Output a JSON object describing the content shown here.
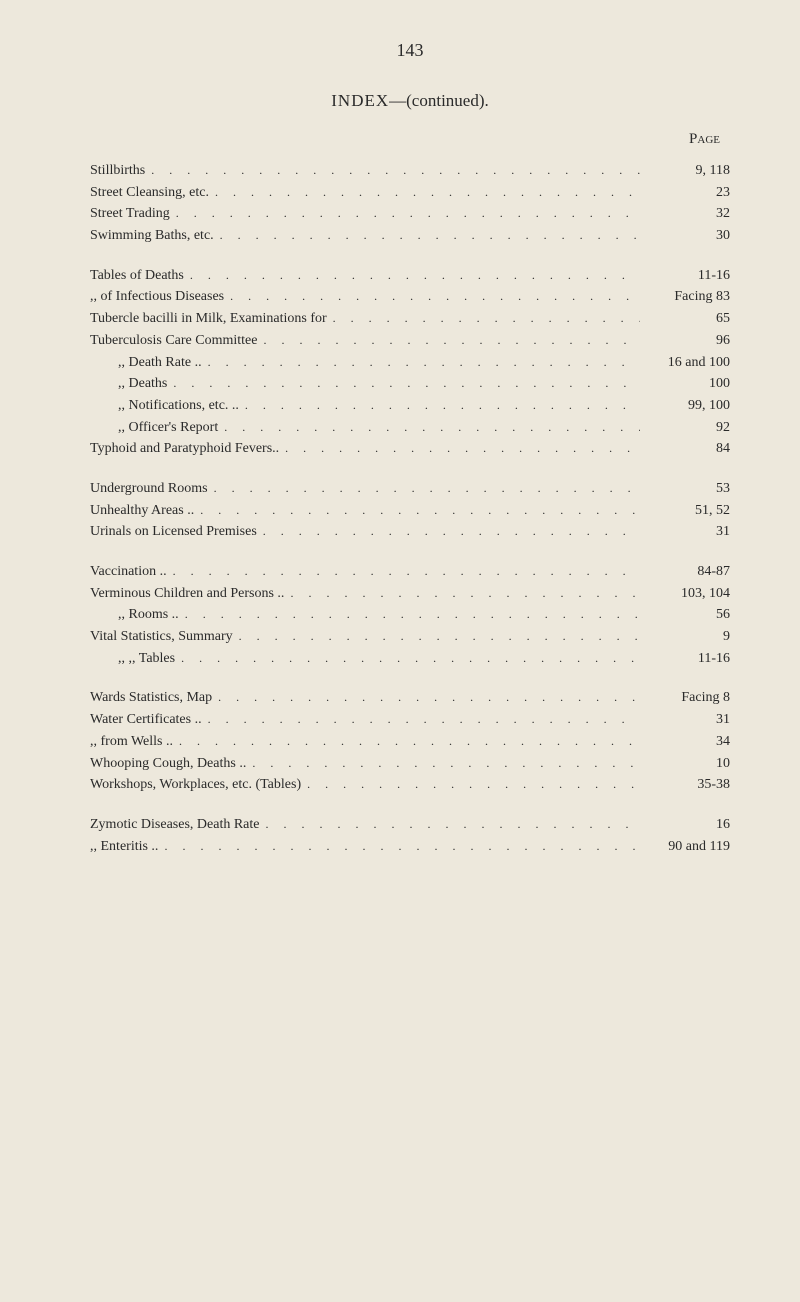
{
  "pageNumber": "143",
  "title": {
    "caps": "INDEX",
    "rest": "—(continued)."
  },
  "pageLabel": "Page",
  "dotsFill": ". . . . . . . . . . . . . . . . . . . . . . . . . . . . . .",
  "sections": [
    {
      "rows": [
        {
          "text": "Stillbirths",
          "page": "9, 118",
          "indent": 0
        },
        {
          "text": "Street Cleansing, etc.",
          "page": "23",
          "indent": 0
        },
        {
          "text": "Street Trading",
          "page": "32",
          "indent": 0
        },
        {
          "text": "Swimming Baths, etc.",
          "page": "30",
          "indent": 0
        }
      ]
    },
    {
      "rows": [
        {
          "text": "Tables of Deaths",
          "page": "11-16",
          "indent": 0
        },
        {
          "text": ",,      of Infectious Diseases",
          "page": "Facing 83",
          "indent": 0
        },
        {
          "text": "Tubercle bacilli in Milk, Examinations for",
          "page": "65",
          "indent": 0
        },
        {
          "text": "Tuberculosis Care Committee",
          "page": "96",
          "indent": 0
        },
        {
          "text": ",,           Death Rate ..",
          "page": "16 and 100",
          "indent": 1
        },
        {
          "text": ",,           Deaths",
          "page": "100",
          "indent": 1
        },
        {
          "text": ",,           Notifications, etc. ..",
          "page": "99, 100",
          "indent": 1
        },
        {
          "text": ",,           Officer's Report",
          "page": "92",
          "indent": 1
        },
        {
          "text": "Typhoid and Paratyphoid Fevers..",
          "page": "84",
          "indent": 0
        }
      ]
    },
    {
      "rows": [
        {
          "text": "Underground Rooms",
          "page": "53",
          "indent": 0
        },
        {
          "text": "Unhealthy Areas  ..",
          "page": "51, 52",
          "indent": 0
        },
        {
          "text": "Urinals on Licensed Premises",
          "page": "31",
          "indent": 0
        }
      ]
    },
    {
      "rows": [
        {
          "text": "Vaccination ..",
          "page": "84-87",
          "indent": 0
        },
        {
          "text": "Verminous Children and Persons ..",
          "page": "103, 104",
          "indent": 0
        },
        {
          "text": ",,           Rooms ..",
          "page": "56",
          "indent": 1
        },
        {
          "text": "Vital Statistics, Summary",
          "page": "9",
          "indent": 0
        },
        {
          "text": ",,         ,,        Tables",
          "page": "11-16",
          "indent": 1
        }
      ]
    },
    {
      "rows": [
        {
          "text": "Wards Statistics, Map",
          "page": "Facing 8",
          "indent": 0
        },
        {
          "text": "Water Certificates ..",
          "page": "31",
          "indent": 0
        },
        {
          "text": ",,    from Wells ..",
          "page": "34",
          "indent": 0
        },
        {
          "text": "Whooping Cough, Deaths ..",
          "page": "10",
          "indent": 0
        },
        {
          "text": "Workshops, Workplaces, etc. (Tables)",
          "page": "35-38",
          "indent": 0
        }
      ]
    },
    {
      "rows": [
        {
          "text": "Zymotic Diseases, Death Rate",
          "page": "16",
          "indent": 0
        },
        {
          "text": ",,        Enteritis ..",
          "page": "90 and 119",
          "indent": 0
        }
      ]
    }
  ]
}
